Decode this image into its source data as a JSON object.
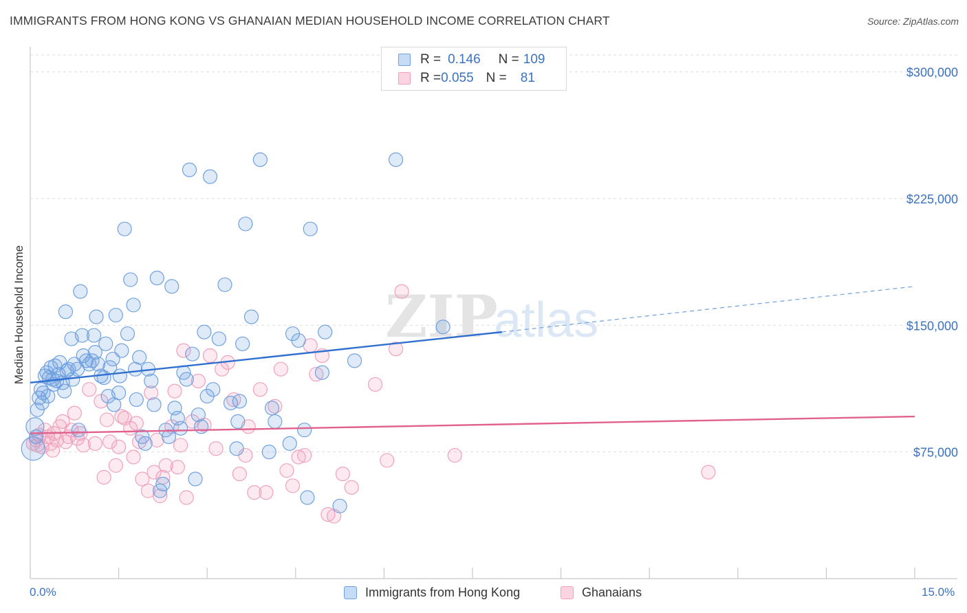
{
  "header": {
    "title": "IMMIGRANTS FROM HONG KONG VS GHANAIAN MEDIAN HOUSEHOLD INCOME CORRELATION CHART",
    "source": "Source: ZipAtlas.com"
  },
  "watermark": {
    "zip": "ZIP",
    "atlas": "atlas"
  },
  "legend": {
    "rows": [
      {
        "r_label": "R = ",
        "r_value": "0.146",
        "n_label": "N = ",
        "n_value": "109",
        "color": "#6fa0e0"
      },
      {
        "r_label": "R = ",
        "r_value": "0.055",
        "n_label": "N = ",
        "n_value": "81",
        "color": "#f0a0bc"
      }
    ]
  },
  "bottom_legend": {
    "items": [
      {
        "label": "Immigrants from Hong Kong",
        "color": "#6fa0e0"
      },
      {
        "label": "Ghanaians",
        "color": "#f0a0bc"
      }
    ]
  },
  "chart_data": {
    "type": "scatter",
    "title": "IMMIGRANTS FROM HONG KONG VS GHANAIAN MEDIAN HOUSEHOLD INCOME CORRELATION CHART",
    "xlabel": "",
    "ylabel": "Median Household Income",
    "xlim": [
      0,
      15
    ],
    "ylim": [
      0,
      310000
    ],
    "x_tick_labels": [
      "0.0%",
      "15.0%"
    ],
    "y_ticks": [
      75000,
      150000,
      225000,
      300000
    ],
    "y_tick_labels": [
      "$75,000",
      "$150,000",
      "$225,000",
      "$300,000"
    ],
    "grid": true,
    "legend_position": "top-center",
    "series": [
      {
        "name": "Immigrants from Hong Kong",
        "color": "#6fa0e0",
        "r": 0.146,
        "n": 109,
        "trend": {
          "x0": 0,
          "y0": 116000,
          "x1": 8.0,
          "y1": 146000,
          "dashed_to_x": 15,
          "dashed_to_y": 173000
        },
        "points": [
          [
            0.05,
            77000
          ],
          [
            0.08,
            90000
          ],
          [
            0.12,
            100000
          ],
          [
            0.1,
            84000
          ],
          [
            0.15,
            107000
          ],
          [
            0.18,
            112000
          ],
          [
            0.22,
            110000
          ],
          [
            0.25,
            120000
          ],
          [
            0.3,
            108000
          ],
          [
            0.32,
            119000
          ],
          [
            0.35,
            125000
          ],
          [
            0.38,
            118000
          ],
          [
            0.42,
            126000
          ],
          [
            0.45,
            117000
          ],
          [
            0.48,
            121000
          ],
          [
            0.5,
            128000
          ],
          [
            0.55,
            116000
          ],
          [
            0.58,
            111000
          ],
          [
            0.6,
            158000
          ],
          [
            0.65,
            124000
          ],
          [
            0.7,
            142000
          ],
          [
            0.72,
            118000
          ],
          [
            0.75,
            127000
          ],
          [
            0.8,
            124000
          ],
          [
            0.82,
            88000
          ],
          [
            0.85,
            170000
          ],
          [
            0.88,
            144000
          ],
          [
            0.9,
            132000
          ],
          [
            0.95,
            129000
          ],
          [
            1.0,
            127000
          ],
          [
            1.05,
            129000
          ],
          [
            1.1,
            134000
          ],
          [
            1.12,
            155000
          ],
          [
            1.15,
            127000
          ],
          [
            1.2,
            120000
          ],
          [
            1.25,
            119000
          ],
          [
            1.28,
            139000
          ],
          [
            1.32,
            108000
          ],
          [
            1.35,
            125000
          ],
          [
            1.4,
            130000
          ],
          [
            1.42,
            103000
          ],
          [
            1.45,
            156000
          ],
          [
            1.5,
            110000
          ],
          [
            1.52,
            120000
          ],
          [
            1.55,
            135000
          ],
          [
            1.6,
            207000
          ],
          [
            1.65,
            145000
          ],
          [
            1.7,
            177000
          ],
          [
            1.75,
            162000
          ],
          [
            1.78,
            124000
          ],
          [
            1.8,
            106000
          ],
          [
            1.85,
            131000
          ],
          [
            1.9,
            84000
          ],
          [
            1.95,
            80000
          ],
          [
            2.0,
            124000
          ],
          [
            2.05,
            117000
          ],
          [
            2.1,
            103000
          ],
          [
            2.15,
            178000
          ],
          [
            2.2,
            52000
          ],
          [
            2.25,
            56000
          ],
          [
            2.3,
            88000
          ],
          [
            2.35,
            84000
          ],
          [
            2.4,
            173000
          ],
          [
            2.45,
            101000
          ],
          [
            2.5,
            95000
          ],
          [
            2.55,
            89000
          ],
          [
            2.6,
            122000
          ],
          [
            2.65,
            118000
          ],
          [
            2.7,
            242000
          ],
          [
            2.75,
            133000
          ],
          [
            2.8,
            59000
          ],
          [
            2.85,
            97000
          ],
          [
            2.9,
            90000
          ],
          [
            2.95,
            146000
          ],
          [
            3.0,
            108000
          ],
          [
            3.05,
            238000
          ],
          [
            3.1,
            112000
          ],
          [
            3.2,
            142000
          ],
          [
            3.3,
            174000
          ],
          [
            3.4,
            104000
          ],
          [
            3.5,
            77000
          ],
          [
            3.52,
            93000
          ],
          [
            3.55,
            105000
          ],
          [
            3.6,
            139000
          ],
          [
            3.65,
            210000
          ],
          [
            3.75,
            155000
          ],
          [
            3.9,
            248000
          ],
          [
            4.05,
            75000
          ],
          [
            4.1,
            101000
          ],
          [
            4.15,
            93000
          ],
          [
            4.4,
            80000
          ],
          [
            4.45,
            145000
          ],
          [
            4.55,
            141000
          ],
          [
            4.65,
            88000
          ],
          [
            4.7,
            48000
          ],
          [
            4.75,
            207000
          ],
          [
            4.95,
            122000
          ],
          [
            5.0,
            146000
          ],
          [
            5.25,
            43000
          ],
          [
            5.5,
            129000
          ],
          [
            6.2,
            248000
          ],
          [
            7.0,
            149000
          ],
          [
            0.28,
            122000
          ],
          [
            0.62,
            123000
          ],
          [
            0.4,
            115000
          ],
          [
            0.2,
            104000
          ],
          [
            1.08,
            144000
          ]
        ]
      },
      {
        "name": "Ghanaians",
        "color": "#f0a0bc",
        "r": 0.055,
        "n": 81,
        "trend": {
          "x0": 0,
          "y0": 86000,
          "x1": 15,
          "y1": 96000
        },
        "points": [
          [
            0.05,
            80000
          ],
          [
            0.1,
            82000
          ],
          [
            0.15,
            85000
          ],
          [
            0.2,
            78000
          ],
          [
            0.25,
            88000
          ],
          [
            0.3,
            84000
          ],
          [
            0.35,
            80000
          ],
          [
            0.4,
            86000
          ],
          [
            0.45,
            82000
          ],
          [
            0.5,
            90000
          ],
          [
            0.55,
            93000
          ],
          [
            0.6,
            81000
          ],
          [
            0.65,
            84000
          ],
          [
            0.7,
            88000
          ],
          [
            0.75,
            98000
          ],
          [
            0.8,
            83000
          ],
          [
            0.85,
            86000
          ],
          [
            0.9,
            79000
          ],
          [
            1.0,
            112000
          ],
          [
            1.1,
            80000
          ],
          [
            1.2,
            105000
          ],
          [
            1.25,
            60000
          ],
          [
            1.3,
            94000
          ],
          [
            1.35,
            81000
          ],
          [
            1.45,
            67000
          ],
          [
            1.5,
            78000
          ],
          [
            1.55,
            96000
          ],
          [
            1.6,
            95000
          ],
          [
            1.7,
            89000
          ],
          [
            1.75,
            72000
          ],
          [
            1.8,
            92000
          ],
          [
            1.85,
            81000
          ],
          [
            1.9,
            59000
          ],
          [
            2.0,
            52000
          ],
          [
            2.05,
            110000
          ],
          [
            2.1,
            63000
          ],
          [
            2.15,
            82000
          ],
          [
            2.2,
            49000
          ],
          [
            2.25,
            60000
          ],
          [
            2.3,
            67000
          ],
          [
            2.4,
            90000
          ],
          [
            2.45,
            111000
          ],
          [
            2.5,
            66000
          ],
          [
            2.55,
            79000
          ],
          [
            2.6,
            135000
          ],
          [
            2.65,
            48000
          ],
          [
            2.75,
            93000
          ],
          [
            2.85,
            117000
          ],
          [
            2.95,
            91000
          ],
          [
            3.05,
            132000
          ],
          [
            3.15,
            77000
          ],
          [
            3.25,
            124000
          ],
          [
            3.35,
            128000
          ],
          [
            3.45,
            106000
          ],
          [
            3.55,
            62000
          ],
          [
            3.65,
            73000
          ],
          [
            3.7,
            90000
          ],
          [
            3.8,
            51000
          ],
          [
            3.9,
            112000
          ],
          [
            4.0,
            51000
          ],
          [
            4.15,
            102000
          ],
          [
            4.25,
            124000
          ],
          [
            4.35,
            64000
          ],
          [
            4.45,
            55000
          ],
          [
            4.55,
            72000
          ],
          [
            4.65,
            73000
          ],
          [
            4.75,
            138000
          ],
          [
            4.85,
            121000
          ],
          [
            4.95,
            132000
          ],
          [
            5.05,
            38000
          ],
          [
            5.15,
            37000
          ],
          [
            5.3,
            62000
          ],
          [
            5.45,
            54000
          ],
          [
            5.85,
            115000
          ],
          [
            6.05,
            70000
          ],
          [
            6.2,
            136000
          ],
          [
            6.3,
            170000
          ],
          [
            7.2,
            73000
          ],
          [
            11.5,
            63000
          ],
          [
            0.38,
            76000
          ],
          [
            0.12,
            79000
          ]
        ]
      }
    ]
  }
}
